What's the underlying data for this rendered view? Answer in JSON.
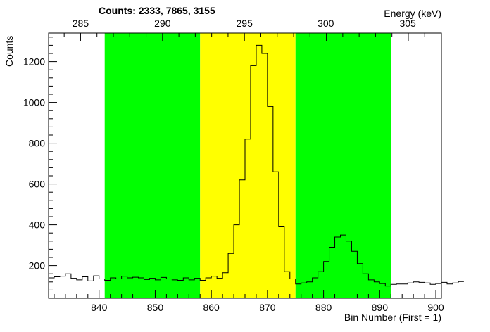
{
  "chart_data": {
    "type": "histogram",
    "title": "Counts:   2333,   7865,   3155",
    "xlabel": "Bin Number (First = 1)",
    "ylabel": "Counts",
    "x2label": "Energy (keV)",
    "xlim": [
      831.0,
      901.0
    ],
    "ylim": [
      40,
      1340
    ],
    "x_ticks": [
      840,
      850,
      860,
      870,
      880,
      890,
      900
    ],
    "y_ticks": [
      200,
      400,
      600,
      800,
      1000,
      1200
    ],
    "x2_ticks": [
      {
        "label": "285",
        "bin": 836.7
      },
      {
        "label": "290",
        "bin": 851.3
      },
      {
        "label": "295",
        "bin": 865.9
      },
      {
        "label": "300",
        "bin": 880.4
      },
      {
        "label": "305",
        "bin": 895.0
      }
    ],
    "regions": [
      {
        "start": 841.0,
        "end": 858.0,
        "color": "#00ff00"
      },
      {
        "start": 858.0,
        "end": 875.0,
        "color": "#ffff00"
      },
      {
        "start": 875.0,
        "end": 892.0,
        "color": "#00ff00"
      }
    ],
    "bin_width": 1,
    "bins_start": 831.0,
    "values": [
      140,
      145,
      148,
      160,
      138,
      130,
      145,
      125,
      150,
      135,
      128,
      140,
      135,
      148,
      140,
      143,
      140,
      132,
      138,
      130,
      142,
      135,
      130,
      128,
      140,
      130,
      138,
      128,
      140,
      148,
      138,
      165,
      260,
      400,
      620,
      820,
      1180,
      1280,
      1240,
      980,
      660,
      390,
      170,
      135,
      110,
      115,
      120,
      140,
      170,
      220,
      290,
      340,
      350,
      320,
      270,
      210,
      160,
      130,
      120,
      112,
      100,
      108,
      110,
      110,
      115,
      120,
      118,
      115,
      108,
      112,
      118,
      110,
      115,
      122
    ]
  }
}
